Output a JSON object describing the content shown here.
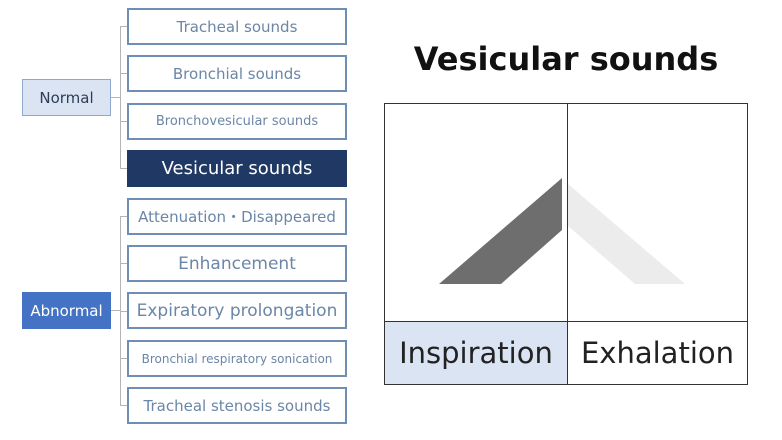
{
  "categories": {
    "normal": "Normal",
    "abnormal": "Abnormal"
  },
  "normal_items": [
    {
      "label": "Tracheal sounds"
    },
    {
      "label": "Bronchial sounds"
    },
    {
      "label": "Bronchovesicular sounds"
    },
    {
      "label": "Vesicular sounds",
      "selected": true
    }
  ],
  "abnormal_items": [
    {
      "label": "Attenuation・Disappeared"
    },
    {
      "label": "Enhancement"
    },
    {
      "label": "Expiratory prolongation"
    },
    {
      "label": "Bronchial respiratory sonication"
    },
    {
      "label": "Tracheal stenosis sounds"
    }
  ],
  "detail": {
    "title": "Vesicular sounds",
    "inspiration_label": "Inspiration",
    "exhalation_label": "Exhalation"
  },
  "colors": {
    "selected_fill": "#1f3864",
    "abnormal_fill": "#4472c4",
    "normal_fill": "#dbe4f2",
    "inspiration_shape": "#6e6e6e",
    "exhalation_shape": "#ececec"
  }
}
